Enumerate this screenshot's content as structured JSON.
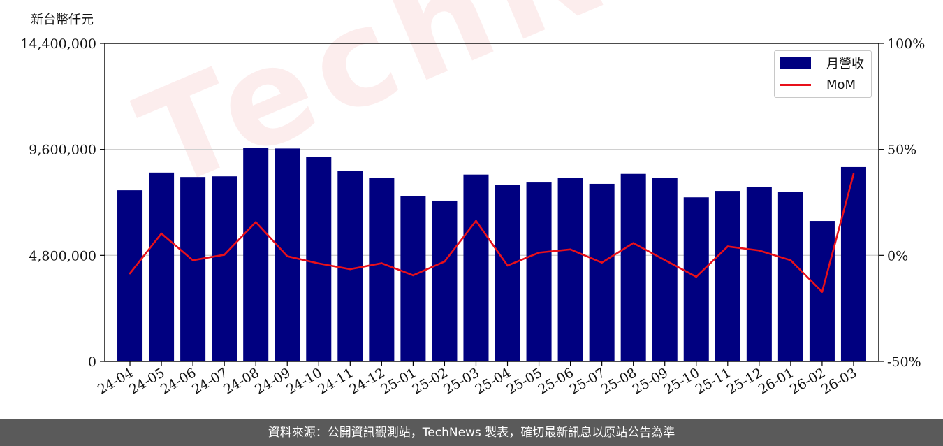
{
  "chart_data": {
    "type": "bar",
    "unit_label": "新台幣仟元",
    "categories": [
      "24-04",
      "24-05",
      "24-06",
      "24-07",
      "24-08",
      "24-09",
      "24-10",
      "24-11",
      "24-12",
      "25-01",
      "25-02",
      "25-03",
      "25-04",
      "25-05",
      "25-06",
      "25-07",
      "25-08",
      "25-09",
      "25-10",
      "25-11",
      "25-12",
      "26-01",
      "26-02",
      "26-03"
    ],
    "series": [
      {
        "name": "月營收",
        "axis": "left",
        "type": "bar",
        "color": "#000080",
        "values": [
          7750000,
          8550000,
          8350000,
          8380000,
          9680000,
          9640000,
          9270000,
          8640000,
          8310000,
          7500000,
          7280000,
          8460000,
          8000000,
          8100000,
          8320000,
          8040000,
          8490000,
          8300000,
          7430000,
          7720000,
          7900000,
          7680000,
          6360000,
          8800000
        ]
      },
      {
        "name": "MoM",
        "axis": "right",
        "type": "line",
        "color": "#e8101a",
        "values": [
          -8.5,
          10.3,
          -2.3,
          0.3,
          15.7,
          -0.4,
          -3.8,
          -6.5,
          -3.7,
          -9.4,
          -2.9,
          16.3,
          -4.8,
          1.3,
          2.8,
          -3.4,
          5.8,
          -2.2,
          -10.1,
          4.2,
          2.3,
          -2.3,
          -17.2,
          38.4
        ]
      }
    ],
    "y_left": {
      "ylim": [
        0,
        14400000
      ],
      "ticks": [
        "0",
        "4,800,000",
        "9,600,000",
        "14,400,000"
      ],
      "tick_values": [
        0,
        4800000,
        9600000,
        14400000
      ]
    },
    "y_right": {
      "ylim": [
        -50,
        100
      ],
      "ticks": [
        "-50%",
        "0%",
        "50%",
        "100%"
      ],
      "tick_values": [
        -50,
        0,
        50,
        100
      ]
    },
    "grid": "horizontal",
    "legend_position": "top-right"
  },
  "footer_text": "資料來源：公開資訊觀測站，TechNews 製表，確切最新訊息以原站公告為準",
  "watermark": "TechNews"
}
